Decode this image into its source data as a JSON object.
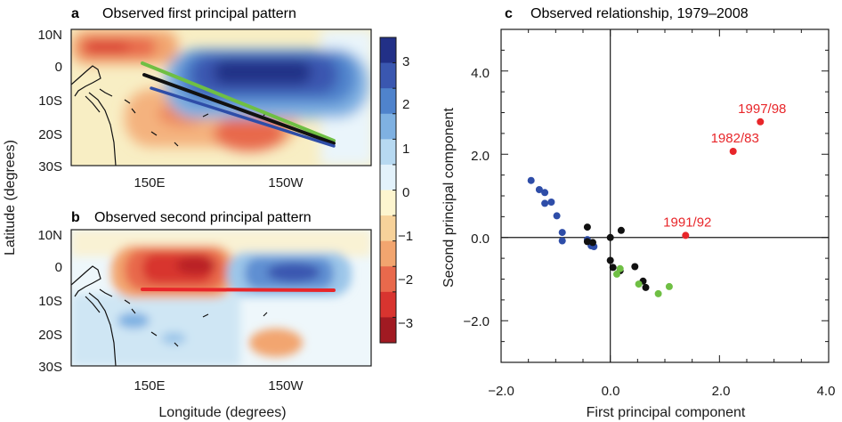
{
  "panels": {
    "a": {
      "letter": "a",
      "title": "Observed first principal pattern"
    },
    "b": {
      "letter": "b",
      "title": "Observed second principal pattern"
    },
    "c": {
      "letter": "c",
      "title": "Observed relationship, 1979–2008"
    }
  },
  "maps": {
    "lat_ticks": [
      "10N",
      "0",
      "10S",
      "20S",
      "30S"
    ],
    "lon_ticks": [
      "150E",
      "150W"
    ],
    "ylabel": "Latitude (degrees)",
    "xlabel": "Longitude (degrees)",
    "colorbar_ticks": [
      "3",
      "2",
      "1",
      "0",
      "−1",
      "−2",
      "−3"
    ],
    "colorbar_colors": [
      "#223087",
      "#3a57b0",
      "#4f83cc",
      "#7fb1e2",
      "#b7d9f1",
      "#e3f2fb",
      "#fdf5cf",
      "#f7d29a",
      "#f2a56f",
      "#e8694c",
      "#d8342f",
      "#a11a22"
    ],
    "line_colors": {
      "green": "#6fbf44",
      "black": "#111111",
      "blue": "#2e4da8",
      "red": "#e8262a"
    }
  },
  "chart_data": {
    "type": "scatter",
    "title": "Observed relationship, 1979–2008",
    "xlabel": "First principal component",
    "ylabel": "Second principal component",
    "xlim": [
      -2.0,
      4.0
    ],
    "ylim": [
      -3.0,
      5.0
    ],
    "xticks": [
      "−2.0",
      "0.0",
      "2.0",
      "4.0"
    ],
    "yticks": [
      "−2.0",
      "0.0",
      "2.0",
      "4.0"
    ],
    "series": [
      {
        "color": "#2e4da8",
        "points": [
          [
            -1.45,
            1.37
          ],
          [
            -1.3,
            1.15
          ],
          [
            -1.2,
            1.08
          ],
          [
            -1.2,
            0.82
          ],
          [
            -1.08,
            0.85
          ],
          [
            -0.98,
            0.52
          ],
          [
            -0.88,
            0.12
          ],
          [
            -0.88,
            -0.08
          ],
          [
            -0.42,
            -0.05
          ],
          [
            -0.35,
            -0.2
          ],
          [
            -0.3,
            -0.22
          ]
        ]
      },
      {
        "color": "#111111",
        "points": [
          [
            -0.42,
            0.25
          ],
          [
            -0.42,
            -0.1
          ],
          [
            -0.32,
            -0.12
          ],
          [
            0.0,
            0.0
          ],
          [
            0.2,
            0.17
          ],
          [
            0.0,
            -0.55
          ],
          [
            0.05,
            -0.72
          ],
          [
            0.18,
            -0.8
          ],
          [
            0.45,
            -0.7
          ],
          [
            0.6,
            -1.05
          ],
          [
            0.65,
            -1.2
          ]
        ]
      },
      {
        "color": "#6fbf44",
        "points": [
          [
            0.18,
            -0.75
          ],
          [
            0.12,
            -0.88
          ],
          [
            0.52,
            -1.12
          ],
          [
            0.88,
            -1.35
          ],
          [
            1.08,
            -1.18
          ]
        ]
      },
      {
        "color": "#e8262a",
        "points": [
          [
            2.75,
            2.78
          ],
          [
            2.25,
            2.07
          ],
          [
            1.38,
            0.05
          ]
        ]
      }
    ],
    "annotations": [
      {
        "text": "1997/98",
        "x": 2.75,
        "y": 2.78
      },
      {
        "text": "1982/83",
        "x": 2.25,
        "y": 2.07
      },
      {
        "text": "1991/92",
        "x": 1.38,
        "y": 0.05
      }
    ]
  }
}
